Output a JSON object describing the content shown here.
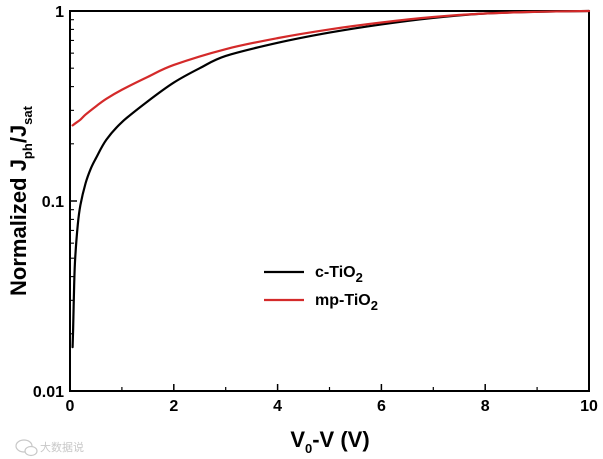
{
  "chart_data": {
    "type": "line",
    "title": "",
    "xlabel": {
      "main": "V",
      "sub": "0",
      "rest": "-V (V)"
    },
    "ylabel": {
      "main": "Normalized J",
      "sub1": "ph",
      "mid": "/J",
      "sub2": "sat"
    },
    "xlim": [
      0,
      10
    ],
    "ylim": [
      0.01,
      1
    ],
    "yscale": "log",
    "x_ticks": [
      0,
      2,
      4,
      6,
      8,
      10
    ],
    "x_tick_labels": [
      "0",
      "2",
      "4",
      "6",
      "8",
      "10"
    ],
    "y_ticks": [
      0.01,
      0.1,
      1
    ],
    "y_tick_labels": [
      "0.01",
      "0.1",
      "1"
    ],
    "grid": false,
    "legend_position": "center",
    "series": [
      {
        "name": {
          "main": "c-TiO",
          "sub": "2"
        },
        "color": "#000000",
        "x": [
          0.05,
          0.06,
          0.08,
          0.1,
          0.15,
          0.2,
          0.3,
          0.4,
          0.5,
          0.7,
          1.0,
          1.5,
          2.0,
          2.5,
          3.0,
          4.0,
          5.0,
          6.0,
          7.0,
          8.0,
          9.0,
          10.0
        ],
        "y": [
          0.017,
          0.021,
          0.036,
          0.05,
          0.075,
          0.095,
          0.124,
          0.148,
          0.168,
          0.21,
          0.26,
          0.335,
          0.42,
          0.5,
          0.58,
          0.68,
          0.77,
          0.85,
          0.92,
          0.97,
          0.99,
          1.0
        ]
      },
      {
        "name": {
          "main": "mp-TiO",
          "sub": "2"
        },
        "color": "#d42a2a",
        "x": [
          0.05,
          0.1,
          0.2,
          0.3,
          0.5,
          0.7,
          1.0,
          1.5,
          2.0,
          3.0,
          4.0,
          5.0,
          6.0,
          7.0,
          8.0,
          9.0,
          10.0
        ],
        "y": [
          0.25,
          0.256,
          0.268,
          0.285,
          0.315,
          0.345,
          0.385,
          0.45,
          0.52,
          0.63,
          0.72,
          0.8,
          0.87,
          0.93,
          0.97,
          0.99,
          1.0
        ]
      }
    ]
  },
  "watermark": {
    "text": "大数据说",
    "icon": "chat-bubble-icon"
  }
}
